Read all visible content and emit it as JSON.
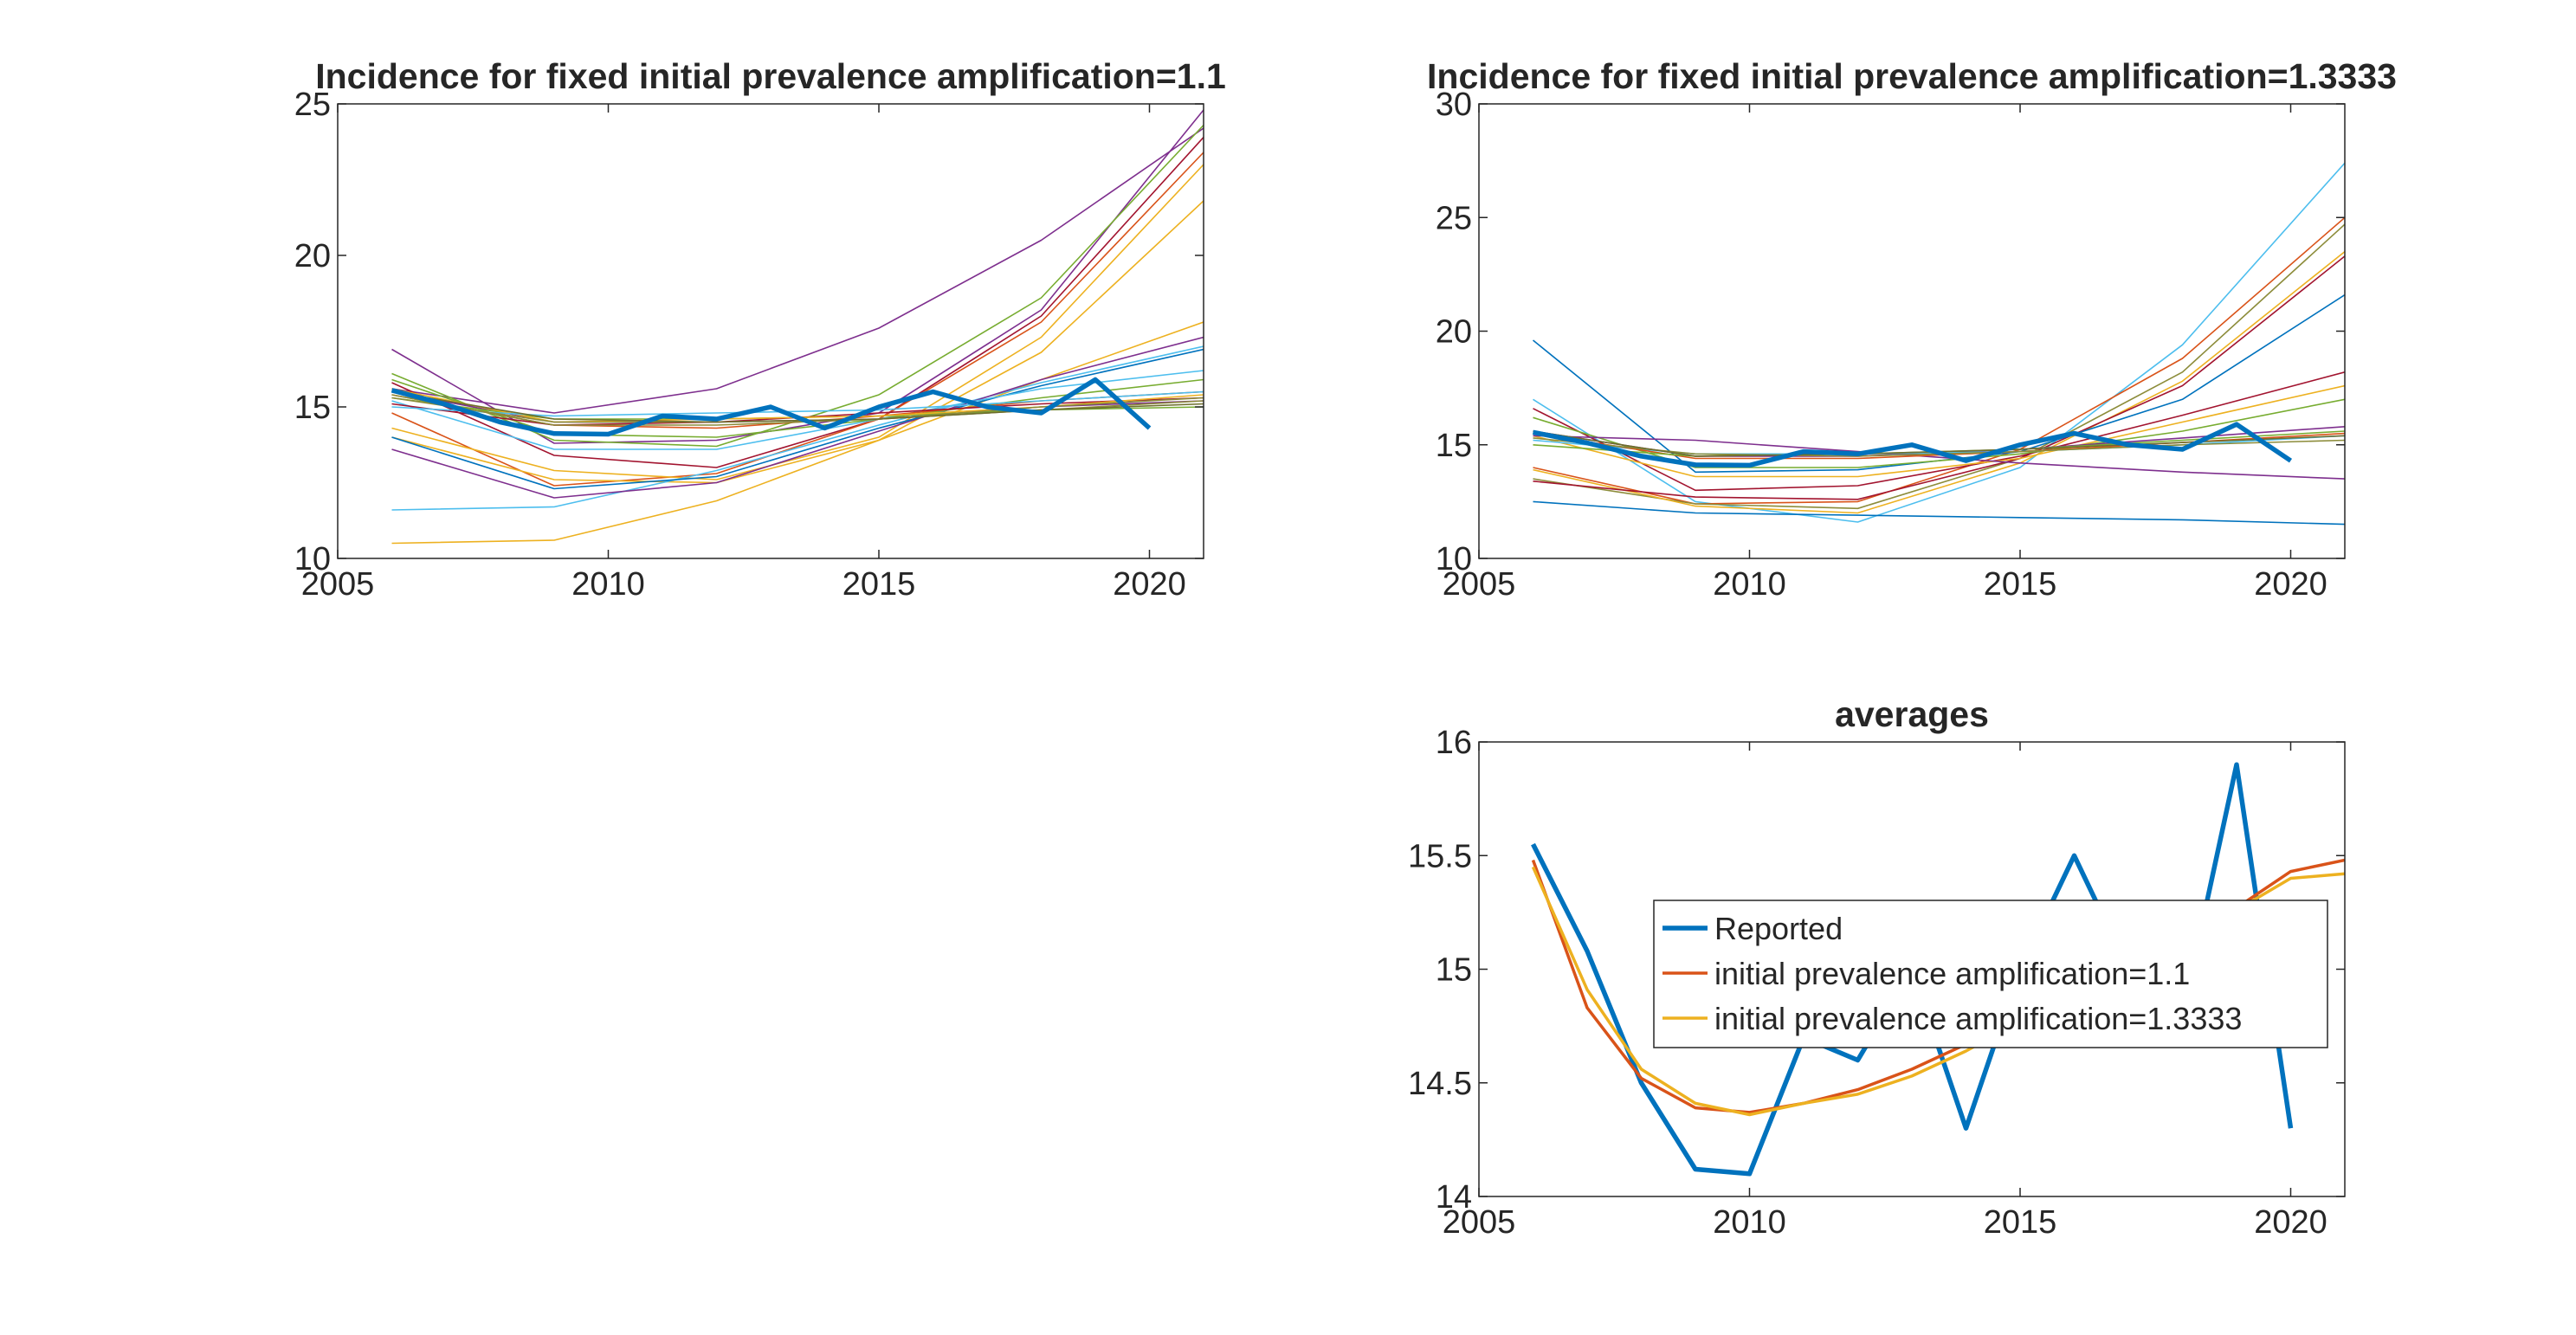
{
  "chart_data": [
    {
      "type": "line",
      "title": "Incidence for fixed initial prevalence amplification=1.1",
      "xlabel": "",
      "ylabel": "",
      "xlim": [
        2005,
        2021
      ],
      "ylim": [
        10,
        25
      ],
      "xticks": [
        "2005",
        "2010",
        "2015",
        "2020"
      ],
      "yticks": [
        "10",
        "15",
        "20",
        "25"
      ],
      "grid": false,
      "reported": {
        "x": [
          2006,
          2007,
          2008,
          2009,
          2010,
          2011,
          2012,
          2013,
          2014,
          2015,
          2016,
          2017,
          2018,
          2019,
          2020
        ],
        "values": [
          15.55,
          15.08,
          14.5,
          14.12,
          14.1,
          14.7,
          14.6,
          15.0,
          14.3,
          15.0,
          15.5,
          15.0,
          14.8,
          15.9,
          14.3
        ],
        "color": "#0072BD"
      },
      "simulations": [
        {
          "x": [
            2006,
            2009,
            2012,
            2015,
            2018,
            2021
          ],
          "values": [
            15.6,
            14.8,
            15.6,
            17.6,
            20.5,
            24.2
          ],
          "color": "#7E2F8E"
        },
        {
          "x": [
            2006,
            2009,
            2012,
            2015,
            2018,
            2021
          ],
          "values": [
            16.9,
            13.8,
            13.9,
            14.8,
            18.2,
            24.8
          ],
          "color": "#7E2F8E"
        },
        {
          "x": [
            2006,
            2009,
            2012,
            2015,
            2018,
            2021
          ],
          "values": [
            16.1,
            13.9,
            13.7,
            15.4,
            18.6,
            24.3
          ],
          "color": "#77AC30"
        },
        {
          "x": [
            2006,
            2009,
            2012,
            2015,
            2018,
            2021
          ],
          "values": [
            15.8,
            13.4,
            13.0,
            14.6,
            18.0,
            23.9
          ],
          "color": "#A2142F"
        },
        {
          "x": [
            2006,
            2009,
            2012,
            2015,
            2018,
            2021
          ],
          "values": [
            14.8,
            12.4,
            12.8,
            14.6,
            17.8,
            23.4
          ],
          "color": "#D95319"
        },
        {
          "x": [
            2006,
            2009,
            2012,
            2015,
            2018,
            2021
          ],
          "values": [
            14.3,
            12.9,
            12.6,
            14.0,
            17.3,
            23.0
          ],
          "color": "#EDB120"
        },
        {
          "x": [
            2006,
            2009,
            2012,
            2015,
            2018,
            2021
          ],
          "values": [
            14.0,
            12.6,
            12.5,
            13.9,
            16.8,
            21.8
          ],
          "color": "#EDB120"
        },
        {
          "x": [
            2006,
            2009,
            2012,
            2015,
            2018,
            2021
          ],
          "values": [
            10.5,
            10.6,
            11.9,
            13.9,
            15.9,
            17.8
          ],
          "color": "#EDB120"
        },
        {
          "x": [
            2006,
            2009,
            2012,
            2015,
            2018,
            2021
          ],
          "values": [
            11.6,
            11.7,
            12.9,
            14.4,
            15.8,
            17.0
          ],
          "color": "#4DBEEE"
        },
        {
          "x": [
            2006,
            2009,
            2012,
            2015,
            2018,
            2021
          ],
          "values": [
            13.6,
            12.0,
            12.5,
            14.2,
            15.9,
            17.3
          ],
          "color": "#7E2F8E"
        },
        {
          "x": [
            2006,
            2009,
            2012,
            2015,
            2018,
            2021
          ],
          "values": [
            14.0,
            12.3,
            12.7,
            14.3,
            15.7,
            16.9
          ],
          "color": "#0072BD"
        },
        {
          "x": [
            2006,
            2009,
            2012,
            2015,
            2018,
            2021
          ],
          "values": [
            15.2,
            13.6,
            13.6,
            14.6,
            15.6,
            16.2
          ],
          "color": "#4DBEEE"
        },
        {
          "x": [
            2006,
            2009,
            2012,
            2015,
            2018,
            2021
          ],
          "values": [
            15.9,
            14.1,
            14.0,
            14.6,
            15.3,
            15.9
          ],
          "color": "#77AC30"
        },
        {
          "x": [
            2006,
            2009,
            2012,
            2015,
            2018,
            2021
          ],
          "values": [
            15.4,
            14.4,
            14.3,
            14.7,
            15.2,
            15.5
          ],
          "color": "#D95319"
        },
        {
          "x": [
            2006,
            2009,
            2012,
            2015,
            2018,
            2021
          ],
          "values": [
            15.5,
            14.5,
            14.5,
            14.6,
            15.0,
            15.2
          ],
          "color": "#7E2F8E"
        },
        {
          "x": [
            2006,
            2009,
            2012,
            2015,
            2018,
            2021
          ],
          "values": [
            15.3,
            14.6,
            14.6,
            14.7,
            14.9,
            15.0
          ],
          "color": "#77AC30"
        },
        {
          "x": [
            2006,
            2009,
            2012,
            2015,
            2018,
            2021
          ],
          "values": [
            15.1,
            14.4,
            14.5,
            14.8,
            15.1,
            15.3
          ],
          "color": "#A2142F"
        },
        {
          "x": [
            2006,
            2009,
            2012,
            2015,
            2018,
            2021
          ],
          "values": [
            15.6,
            14.5,
            14.6,
            14.7,
            15.0,
            15.4
          ],
          "color": "#EDB120"
        },
        {
          "x": [
            2006,
            2009,
            2012,
            2015,
            2018,
            2021
          ],
          "values": [
            15.0,
            14.7,
            14.8,
            14.9,
            15.2,
            15.5
          ],
          "color": "#4DBEEE"
        },
        {
          "x": [
            2006,
            2009,
            2012,
            2015,
            2018,
            2021
          ],
          "values": [
            15.4,
            14.4,
            14.4,
            14.6,
            15.0,
            15.3
          ],
          "color": "#8C8C3A"
        },
        {
          "x": [
            2006,
            2009,
            2012,
            2015,
            2018,
            2021
          ],
          "values": [
            15.3,
            14.5,
            14.5,
            14.6,
            14.9,
            15.2
          ],
          "color": "#8C8C3A"
        },
        {
          "x": [
            2006,
            2009,
            2012,
            2015,
            2018,
            2021
          ],
          "values": [
            15.5,
            14.6,
            14.5,
            14.6,
            14.9,
            15.1
          ],
          "color": "#6E6E2E"
        }
      ]
    },
    {
      "type": "line",
      "title": "Incidence for fixed initial prevalence amplification=1.3333",
      "xlabel": "",
      "ylabel": "",
      "xlim": [
        2005,
        2021
      ],
      "ylim": [
        10,
        30
      ],
      "xticks": [
        "2005",
        "2010",
        "2015",
        "2020"
      ],
      "yticks": [
        "10",
        "15",
        "20",
        "25",
        "30"
      ],
      "grid": false,
      "reported": {
        "x": [
          2006,
          2007,
          2008,
          2009,
          2010,
          2011,
          2012,
          2013,
          2014,
          2015,
          2016,
          2017,
          2018,
          2019,
          2020
        ],
        "values": [
          15.55,
          15.08,
          14.5,
          14.12,
          14.1,
          14.7,
          14.6,
          15.0,
          14.3,
          15.0,
          15.5,
          15.0,
          14.8,
          15.9,
          14.3
        ],
        "color": "#0072BD"
      },
      "simulations": [
        {
          "x": [
            2006,
            2009,
            2012,
            2015,
            2018,
            2021
          ],
          "values": [
            17.0,
            12.5,
            11.6,
            14.0,
            19.4,
            27.4
          ],
          "color": "#4DBEEE"
        },
        {
          "x": [
            2006,
            2009,
            2012,
            2015,
            2018,
            2021
          ],
          "values": [
            14.0,
            12.4,
            12.5,
            14.8,
            18.8,
            25.0
          ],
          "color": "#D95319"
        },
        {
          "x": [
            2006,
            2009,
            2012,
            2015,
            2018,
            2021
          ],
          "values": [
            13.5,
            12.4,
            12.2,
            14.4,
            18.2,
            24.7
          ],
          "color": "#8C8C3A"
        },
        {
          "x": [
            2006,
            2009,
            2012,
            2015,
            2018,
            2021
          ],
          "values": [
            13.9,
            12.3,
            12.0,
            14.2,
            17.8,
            23.5
          ],
          "color": "#EDB120"
        },
        {
          "x": [
            2006,
            2009,
            2012,
            2015,
            2018,
            2021
          ],
          "values": [
            13.4,
            12.7,
            12.6,
            14.4,
            17.6,
            23.3
          ],
          "color": "#A2142F"
        },
        {
          "x": [
            2006,
            2009,
            2012,
            2015,
            2018,
            2021
          ],
          "values": [
            19.6,
            13.8,
            13.9,
            14.7,
            17.0,
            21.6
          ],
          "color": "#0072BD"
        },
        {
          "x": [
            2006,
            2009,
            2012,
            2015,
            2018,
            2021
          ],
          "values": [
            16.6,
            13.0,
            13.2,
            14.5,
            16.3,
            18.2
          ],
          "color": "#A2142F"
        },
        {
          "x": [
            2006,
            2009,
            2012,
            2015,
            2018,
            2021
          ],
          "values": [
            15.4,
            13.6,
            13.6,
            14.4,
            16.0,
            17.6
          ],
          "color": "#EDB120"
        },
        {
          "x": [
            2006,
            2009,
            2012,
            2015,
            2018,
            2021
          ],
          "values": [
            16.2,
            14.0,
            14.0,
            14.6,
            15.6,
            17.0
          ],
          "color": "#77AC30"
        },
        {
          "x": [
            2006,
            2009,
            2012,
            2015,
            2018,
            2021
          ],
          "values": [
            15.4,
            15.2,
            14.7,
            14.2,
            13.8,
            13.5
          ],
          "color": "#7E2F8E"
        },
        {
          "x": [
            2006,
            2009,
            2012,
            2015,
            2018,
            2021
          ],
          "values": [
            12.5,
            12.0,
            11.9,
            11.8,
            11.7,
            11.5
          ],
          "color": "#0072BD"
        },
        {
          "x": [
            2006,
            2009,
            2012,
            2015,
            2018,
            2021
          ],
          "values": [
            15.6,
            14.5,
            14.5,
            14.8,
            15.3,
            15.8
          ],
          "color": "#7E2F8E"
        },
        {
          "x": [
            2006,
            2009,
            2012,
            2015,
            2018,
            2021
          ],
          "values": [
            15.2,
            14.6,
            14.6,
            14.7,
            15.0,
            15.4
          ],
          "color": "#4DBEEE"
        },
        {
          "x": [
            2006,
            2009,
            2012,
            2015,
            2018,
            2021
          ],
          "values": [
            15.5,
            14.4,
            14.4,
            14.7,
            15.1,
            15.5
          ],
          "color": "#D95319"
        },
        {
          "x": [
            2006,
            2009,
            2012,
            2015,
            2018,
            2021
          ],
          "values": [
            15.0,
            14.5,
            14.6,
            14.8,
            15.2,
            15.6
          ],
          "color": "#77AC30"
        },
        {
          "x": [
            2006,
            2009,
            2012,
            2015,
            2018,
            2021
          ],
          "values": [
            15.3,
            14.6,
            14.5,
            14.7,
            15.0,
            15.2
          ],
          "color": "#8C8C3A"
        },
        {
          "x": [
            2006,
            2009,
            2012,
            2015,
            2018,
            2021
          ],
          "values": [
            15.6,
            14.5,
            14.6,
            14.8,
            15.1,
            15.4
          ],
          "color": "#6E6E2E"
        }
      ]
    },
    {
      "type": "line",
      "title": "averages",
      "xlabel": "",
      "ylabel": "",
      "xlim": [
        2005,
        2021
      ],
      "ylim": [
        14,
        16
      ],
      "xticks": [
        "2005",
        "2010",
        "2015",
        "2020"
      ],
      "yticks": [
        "14",
        "14.5",
        "15",
        "15.5",
        "16"
      ],
      "grid": false,
      "legend_position": "center-right",
      "series": [
        {
          "name": "Reported",
          "x": [
            2006,
            2007,
            2008,
            2009,
            2010,
            2011,
            2012,
            2013,
            2014,
            2015,
            2016,
            2017,
            2018,
            2019,
            2020
          ],
          "values": [
            15.55,
            15.08,
            14.5,
            14.12,
            14.1,
            14.7,
            14.6,
            15.0,
            14.3,
            15.0,
            15.5,
            15.0,
            14.8,
            15.9,
            14.3
          ],
          "color": "#0072BD"
        },
        {
          "name": "initial prevalence amplification=1.1",
          "x": [
            2006,
            2007,
            2008,
            2009,
            2010,
            2011,
            2012,
            2013,
            2014,
            2015,
            2016,
            2017,
            2018,
            2019,
            2020,
            2021
          ],
          "values": [
            15.48,
            14.83,
            14.52,
            14.39,
            14.37,
            14.41,
            14.47,
            14.56,
            14.67,
            14.78,
            14.9,
            15.0,
            15.1,
            15.27,
            15.43,
            15.48
          ],
          "color": "#D95319"
        },
        {
          "name": "initial prevalence amplification=1.3333",
          "x": [
            2006,
            2007,
            2008,
            2009,
            2010,
            2011,
            2012,
            2013,
            2014,
            2015,
            2016,
            2017,
            2018,
            2019,
            2020,
            2021
          ],
          "values": [
            15.45,
            14.91,
            14.56,
            14.41,
            14.36,
            14.41,
            14.45,
            14.53,
            14.64,
            14.77,
            14.88,
            14.98,
            15.1,
            15.26,
            15.4,
            15.42
          ],
          "color": "#EDB120"
        }
      ]
    }
  ]
}
